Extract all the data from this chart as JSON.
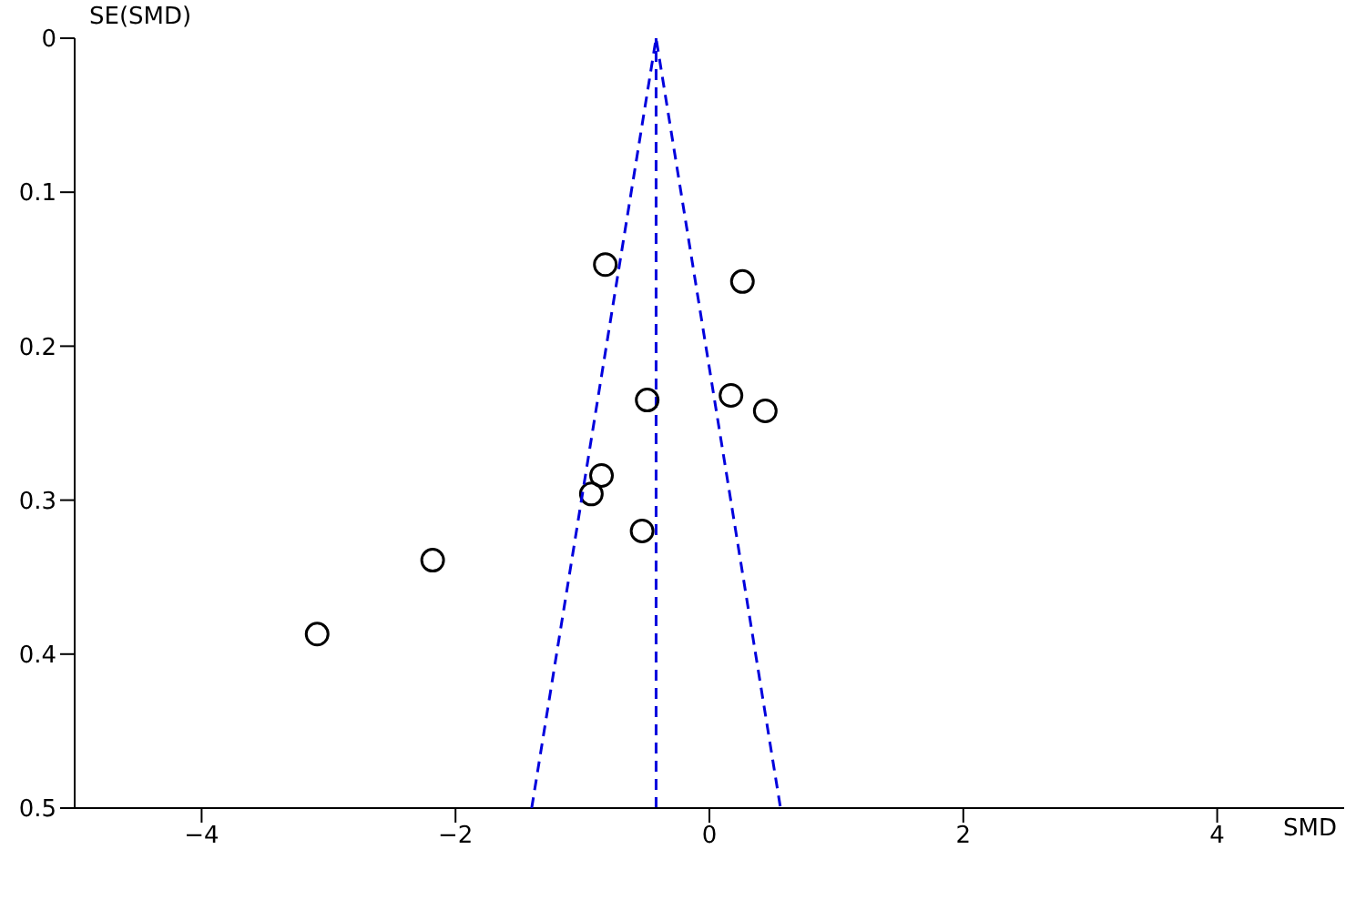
{
  "chart_data": {
    "type": "scatter",
    "xlabel": "SMD",
    "ylabel": "SE(SMD)",
    "xlim": [
      -5,
      5
    ],
    "xticks": [
      -4,
      -2,
      0,
      2,
      4
    ],
    "ylim": [
      0.5,
      0
    ],
    "yticks": [
      0,
      0.1,
      0.2,
      0.3,
      0.4,
      0.5
    ],
    "marker": "circle",
    "series": [
      {
        "color": "#000000",
        "x": [
          -0.82,
          0.26,
          -0.49,
          0.17,
          0.44,
          -0.85,
          -0.93,
          -0.53,
          -2.18,
          -3.09
        ],
        "values": [
          0.147,
          0.158,
          0.235,
          0.232,
          0.242,
          0.284,
          0.296,
          0.32,
          0.339,
          0.387
        ]
      },
      {
        "type": "line",
        "color": "#0000dd",
        "line_style": "dashed",
        "marker": "none",
        "x": [
          -1.4,
          -0.42,
          0.56
        ],
        "values": [
          0.5,
          0,
          0.5
        ]
      }
    ],
    "ref_lines": [
      {
        "axis": "x",
        "value": -0.42,
        "color": "#0000dd",
        "line_style": "dashed"
      }
    ]
  }
}
